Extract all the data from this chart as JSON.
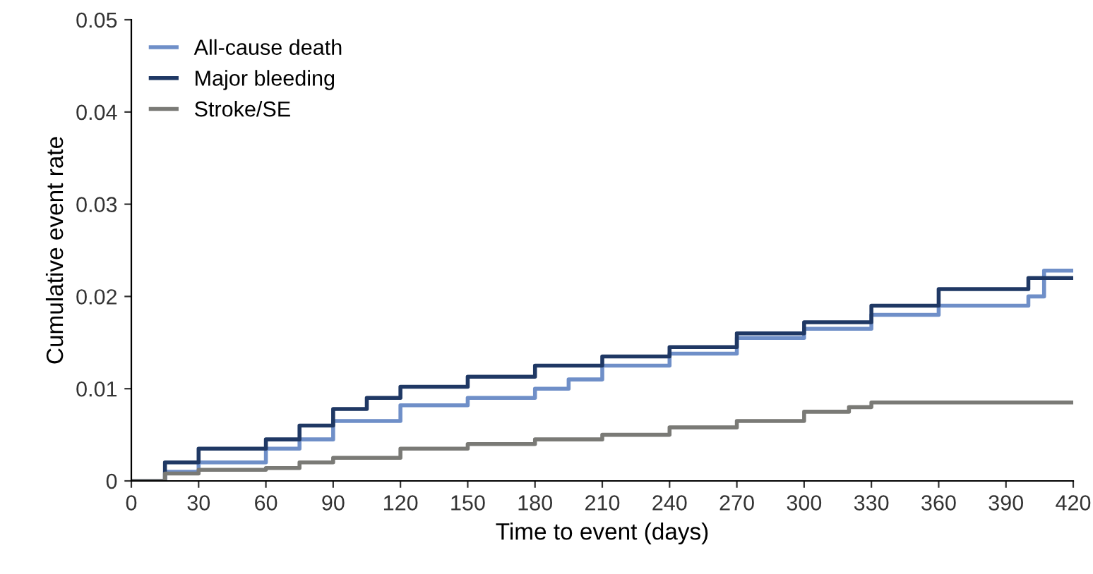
{
  "chart_data": {
    "type": "step",
    "xlabel": "Time to event (days)",
    "ylabel": "Cumulative event rate",
    "xlim": [
      0,
      420
    ],
    "ylim": [
      0,
      0.05
    ],
    "xticks": [
      0,
      30,
      60,
      90,
      120,
      150,
      180,
      210,
      240,
      270,
      300,
      330,
      360,
      390,
      420
    ],
    "yticks": [
      0,
      0.01,
      0.02,
      0.03,
      0.04,
      0.05
    ],
    "grid": false,
    "legend": "top left",
    "series": [
      {
        "name": "All-cause death",
        "color": "#6f8fc8",
        "x": [
          0,
          15,
          30,
          60,
          75,
          90,
          120,
          150,
          180,
          195,
          210,
          240,
          270,
          300,
          330,
          360,
          400,
          407,
          420
        ],
        "values": [
          0,
          0.001,
          0.002,
          0.0035,
          0.0045,
          0.0065,
          0.0082,
          0.009,
          0.01,
          0.011,
          0.0125,
          0.0138,
          0.0155,
          0.0165,
          0.018,
          0.019,
          0.02,
          0.0228,
          0.0228
        ]
      },
      {
        "name": "Major bleeding",
        "color": "#1f3864",
        "x": [
          0,
          15,
          30,
          60,
          75,
          90,
          105,
          120,
          150,
          180,
          210,
          240,
          270,
          300,
          330,
          360,
          400,
          420
        ],
        "values": [
          0,
          0.002,
          0.0035,
          0.0045,
          0.006,
          0.0078,
          0.009,
          0.0102,
          0.0113,
          0.0125,
          0.0135,
          0.0145,
          0.016,
          0.0172,
          0.019,
          0.0208,
          0.022,
          0.022
        ]
      },
      {
        "name": "Stroke/SE",
        "color": "#7a7a76",
        "x": [
          0,
          15,
          30,
          60,
          75,
          90,
          120,
          150,
          180,
          210,
          240,
          270,
          300,
          320,
          330,
          420
        ],
        "values": [
          0,
          0.0008,
          0.0012,
          0.0014,
          0.002,
          0.0025,
          0.0035,
          0.004,
          0.0045,
          0.005,
          0.0058,
          0.0065,
          0.0075,
          0.008,
          0.0085,
          0.0085
        ]
      }
    ]
  }
}
